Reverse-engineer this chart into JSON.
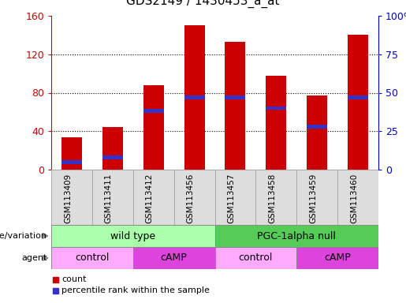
{
  "title": "GDS2149 / 1430453_a_at",
  "samples": [
    "GSM113409",
    "GSM113411",
    "GSM113412",
    "GSM113456",
    "GSM113457",
    "GSM113458",
    "GSM113459",
    "GSM113460"
  ],
  "counts": [
    34,
    44,
    88,
    150,
    133,
    98,
    77,
    140
  ],
  "percentile_ranks": [
    5,
    8,
    38,
    47,
    47,
    40,
    28,
    47
  ],
  "ylim_left": [
    0,
    160
  ],
  "ylim_right": [
    0,
    100
  ],
  "yticks_left": [
    0,
    40,
    80,
    120,
    160
  ],
  "yticks_right": [
    0,
    25,
    50,
    75,
    100
  ],
  "bar_color": "#cc0000",
  "percentile_color": "#3333cc",
  "left_axis_color": "#cc0000",
  "right_axis_color": "#0000cc",
  "genotype_groups": [
    {
      "label": "wild type",
      "start": 0,
      "end": 4,
      "color": "#aaffaa"
    },
    {
      "label": "PGC-1alpha null",
      "start": 4,
      "end": 8,
      "color": "#55cc55"
    }
  ],
  "agent_groups": [
    {
      "label": "control",
      "start": 0,
      "end": 2,
      "color": "#ffaaff"
    },
    {
      "label": "cAMP",
      "start": 2,
      "end": 4,
      "color": "#dd44dd"
    },
    {
      "label": "control",
      "start": 4,
      "end": 6,
      "color": "#ffaaff"
    },
    {
      "label": "cAMP",
      "start": 6,
      "end": 8,
      "color": "#dd44dd"
    }
  ],
  "legend_count_color": "#cc0000",
  "legend_percentile_color": "#3333cc",
  "bar_width": 0.5,
  "cell_bg": "#dddddd",
  "cell_edge": "#aaaaaa"
}
